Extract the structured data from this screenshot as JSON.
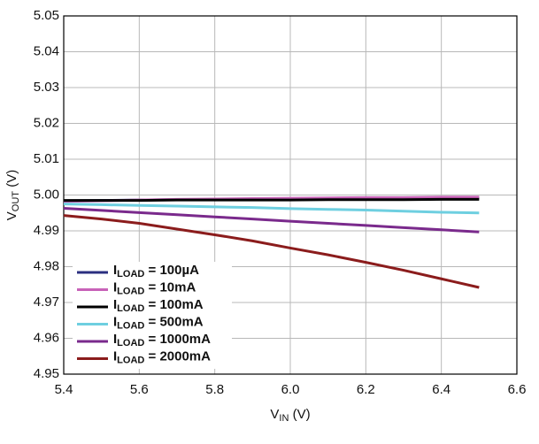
{
  "chart_data": {
    "type": "line",
    "x_label": [
      "V",
      "IN",
      " (V)"
    ],
    "y_label": [
      "V",
      "OUT",
      " (V)"
    ],
    "x": [
      5.4,
      5.5,
      5.6,
      5.7,
      5.8,
      5.9,
      6.0,
      6.1,
      6.2,
      6.3,
      6.4,
      6.5
    ],
    "series": [
      {
        "name": [
          "I",
          "LOAD",
          " = 100µA"
        ],
        "color": "#2b2f80",
        "values": [
          4.9984,
          4.9985,
          4.9986,
          4.9987,
          4.9988,
          4.9988,
          4.9989,
          4.999,
          4.9991,
          4.9991,
          4.9992,
          4.9992
        ]
      },
      {
        "name": [
          "I",
          "LOAD",
          " = 10mA"
        ],
        "color": "#c862b8",
        "values": [
          4.9982,
          4.9984,
          4.9986,
          4.9988,
          4.9989,
          4.999,
          4.9991,
          4.9992,
          4.9993,
          4.9993,
          4.9994,
          4.9994
        ]
      },
      {
        "name": [
          "I",
          "LOAD",
          " = 100mA"
        ],
        "color": "#000000",
        "values": [
          4.9985,
          4.9985,
          4.9985,
          4.9986,
          4.9986,
          4.9986,
          4.9986,
          4.9987,
          4.9987,
          4.9987,
          4.9988,
          4.9988
        ]
      },
      {
        "name": [
          "I",
          "LOAD",
          " = 500mA"
        ],
        "color": "#6ecfe0",
        "values": [
          4.9975,
          4.9973,
          4.9971,
          4.9969,
          4.9967,
          4.9965,
          4.9962,
          4.996,
          4.9958,
          4.9955,
          4.9952,
          4.995
        ]
      },
      {
        "name": [
          "I",
          "LOAD",
          " = 1000mA"
        ],
        "color": "#7a2a8c",
        "values": [
          4.9963,
          4.9957,
          4.9951,
          4.9945,
          4.9939,
          4.9933,
          4.9927,
          4.9921,
          4.9915,
          4.9909,
          4.9903,
          4.9897
        ]
      },
      {
        "name": [
          "I",
          "LOAD",
          " = 2000mA"
        ],
        "color": "#8b1c1c",
        "values": [
          4.9943,
          4.9933,
          4.9921,
          4.9905,
          4.9889,
          4.9872,
          4.9852,
          4.9833,
          4.9812,
          4.979,
          4.9766,
          4.9742
        ]
      }
    ],
    "xlim": [
      5.4,
      6.6
    ],
    "xticks": [
      5.4,
      5.6,
      5.8,
      {
        "value": 6,
        "label": "6.0"
      },
      6.2,
      6.4,
      6.6
    ],
    "ylim": [
      4.95,
      5.05
    ],
    "yticks": [
      4.95,
      4.96,
      4.97,
      4.98,
      4.99,
      {
        "value": 5,
        "label": "5.00"
      },
      5.01,
      5.02,
      5.03,
      5.04,
      5.05
    ],
    "grid": true,
    "legend": "lower left"
  }
}
